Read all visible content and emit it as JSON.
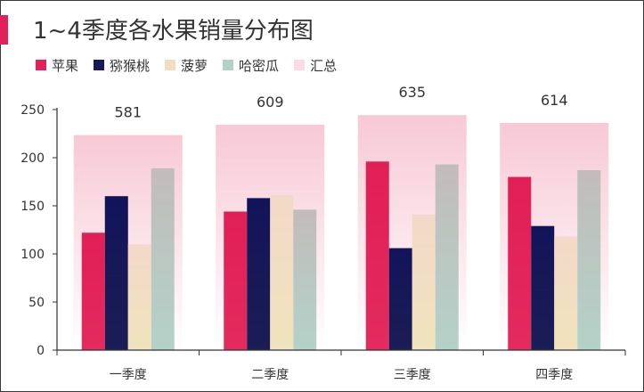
{
  "chart_data": {
    "type": "bar",
    "title": "1~4季度各水果销量分布图",
    "categories": [
      "一季度",
      "二季度",
      "三季度",
      "四季度"
    ],
    "series": [
      {
        "name": "苹果",
        "values": [
          122,
          144,
          196,
          180
        ]
      },
      {
        "name": "猕猴桃",
        "values": [
          160,
          158,
          106,
          129
        ]
      },
      {
        "name": "菠萝",
        "values": [
          110,
          161,
          141,
          118
        ]
      },
      {
        "name": "哈密瓜",
        "values": [
          189,
          146,
          193,
          187
        ]
      },
      {
        "name": "汇总",
        "values": [
          581,
          609,
          635,
          614
        ]
      }
    ],
    "ylim": [
      0,
      250
    ],
    "yticks": [
      0,
      50,
      100,
      150,
      200,
      250
    ],
    "total_series_scale": 0.3846,
    "xlabel": "",
    "ylabel": "",
    "legend_position": "top-left",
    "grid": false
  },
  "legend": [
    {
      "label": "苹果"
    },
    {
      "label": "猕猴桃"
    },
    {
      "label": "菠萝"
    },
    {
      "label": "哈密瓜"
    },
    {
      "label": "汇总"
    }
  ]
}
